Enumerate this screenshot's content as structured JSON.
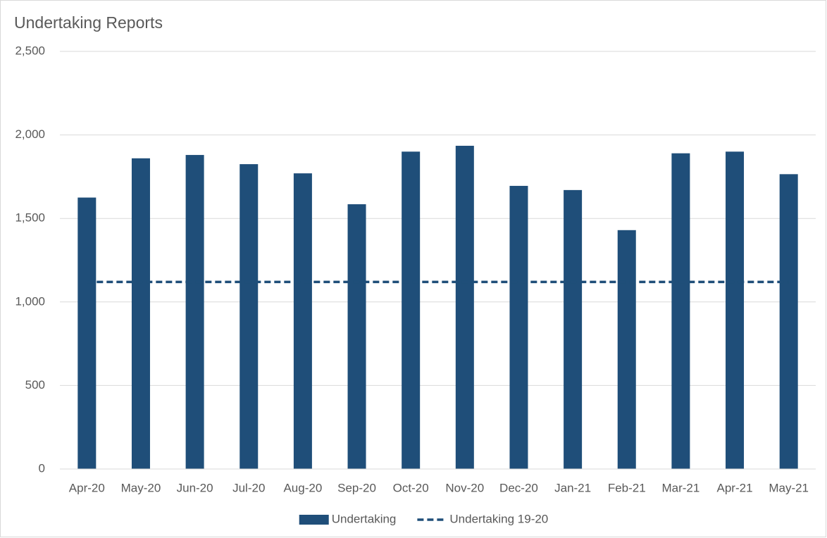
{
  "chart_data": {
    "type": "bar",
    "title": "Undertaking Reports",
    "categories": [
      "Apr-20",
      "May-20",
      "Jun-20",
      "Jul-20",
      "Aug-20",
      "Sep-20",
      "Oct-20",
      "Nov-20",
      "Dec-20",
      "Jan-21",
      "Feb-21",
      "Mar-21",
      "Apr-21",
      "May-21"
    ],
    "series": [
      {
        "name": "Undertaking",
        "type": "bar",
        "color": "#1f4e79",
        "values": [
          1625,
          1860,
          1880,
          1825,
          1770,
          1585,
          1900,
          1935,
          1695,
          1670,
          1430,
          1890,
          1900,
          1765
        ]
      },
      {
        "name": "Undertaking 19-20",
        "type": "line",
        "dashed": true,
        "color": "#1f4e79",
        "values": [
          1120,
          1120,
          1120,
          1120,
          1120,
          1120,
          1120,
          1120,
          1120,
          1120,
          1120,
          1120,
          1120,
          1120
        ]
      }
    ],
    "ylim": [
      0,
      2500
    ],
    "yticks": [
      0,
      {
        "value": 500,
        "label": "500"
      },
      {
        "value": 1000,
        "label": "1,000"
      },
      {
        "value": 1500,
        "label": "1,500"
      },
      {
        "value": 2000,
        "label": "2,000"
      },
      {
        "value": 2500,
        "label": "2,500"
      }
    ],
    "grid": true,
    "legend": "bottom"
  }
}
